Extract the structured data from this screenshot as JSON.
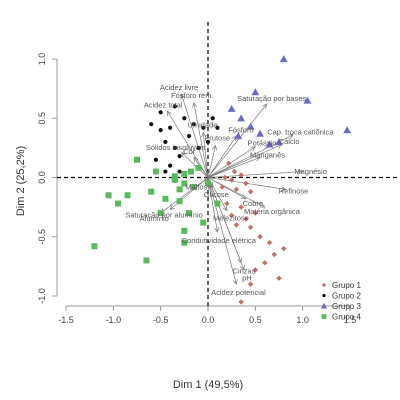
{
  "chart_data": {
    "type": "scatter",
    "xlabel": "Dim 1 (49,5%)",
    "ylabel": "Dim 2 (25,2%)",
    "xlim": [
      -1.5,
      1.5
    ],
    "ylim": [
      -1.0,
      1.0
    ],
    "x_ticks": [
      "-1.5",
      "-1.0",
      "-0.5",
      "0.0",
      "0.5",
      "1.0",
      "1.5"
    ],
    "y_ticks": [
      "-1.0",
      "-0.5",
      "0.0",
      "0.5",
      "1.0"
    ],
    "x_tick_values": [
      -1.5,
      -1.0,
      -0.5,
      0.0,
      0.5,
      1.0,
      1.5
    ],
    "y_tick_values": [
      -1.0,
      -0.5,
      0.0,
      0.5,
      1.0
    ],
    "legend_position": "bottom-right",
    "grid": false,
    "variables": [
      {
        "label": "Acidez livre",
        "x": -0.28,
        "y": 0.7
      },
      {
        "label": "Fósforo rem.",
        "x": -0.15,
        "y": 0.63
      },
      {
        "label": "Acidez total",
        "x": -0.43,
        "y": 0.56
      },
      {
        "label": "Saturação por bases",
        "x": 0.62,
        "y": 0.62
      },
      {
        "label": "Umidade",
        "x": -0.05,
        "y": 0.38
      },
      {
        "label": "Fósforo",
        "x": 0.3,
        "y": 0.35
      },
      {
        "label": "Cap. troca catiônica",
        "x": 0.9,
        "y": 0.36
      },
      {
        "label": "Frutose",
        "x": 0.08,
        "y": 0.27
      },
      {
        "label": "Potássio",
        "x": 0.5,
        "y": 0.26
      },
      {
        "label": "Cálcio",
        "x": 0.78,
        "y": 0.28
      },
      {
        "label": "Sólidos insolúveis",
        "x": -0.28,
        "y": 0.21
      },
      {
        "label": "Cor",
        "x": -0.15,
        "y": 0.17
      },
      {
        "label": "Manganês",
        "x": 0.55,
        "y": 0.17
      },
      {
        "label": "Magnésio",
        "x": 1.0,
        "y": 0.05
      },
      {
        "label": "Maltose",
        "x": -0.04,
        "y": -0.03
      },
      {
        "label": "Glicose",
        "x": 0.05,
        "y": -0.08
      },
      {
        "label": "Refinose",
        "x": 0.82,
        "y": -0.1
      },
      {
        "label": "Cobre",
        "x": 0.4,
        "y": -0.18
      },
      {
        "label": "Matéria orgânica",
        "x": 0.6,
        "y": -0.25
      },
      {
        "label": "Saturação por alumínio",
        "x": -0.4,
        "y": -0.27
      },
      {
        "label": "Alumínio",
        "x": -0.5,
        "y": -0.3
      },
      {
        "label": "Melezitose",
        "x": 0.2,
        "y": -0.28
      },
      {
        "label": "Condutividade elétrica",
        "x": 0.1,
        "y": -0.46
      },
      {
        "label": "Cinzas",
        "x": 0.35,
        "y": -0.72
      },
      {
        "label": "pH",
        "x": 0.38,
        "y": -0.78
      },
      {
        "label": "Acidez potencial",
        "x": 0.3,
        "y": -0.9
      }
    ],
    "series": [
      {
        "name": "Grupo 1",
        "color": "#c0706b",
        "marker": "diamond",
        "points": [
          [
            0.22,
            0.12
          ],
          [
            0.28,
            0.05
          ],
          [
            0.35,
            0.02
          ],
          [
            0.25,
            -0.02
          ],
          [
            0.4,
            -0.05
          ],
          [
            0.3,
            -0.1
          ],
          [
            0.45,
            -0.12
          ],
          [
            0.2,
            -0.22
          ],
          [
            0.35,
            -0.25
          ],
          [
            0.5,
            -0.3
          ],
          [
            0.25,
            -0.32
          ],
          [
            0.4,
            -0.35
          ],
          [
            0.3,
            -0.4
          ],
          [
            0.45,
            -0.42
          ],
          [
            0.55,
            -0.5
          ],
          [
            0.65,
            -0.55
          ],
          [
            0.7,
            -0.65
          ],
          [
            0.8,
            -0.6
          ],
          [
            0.6,
            -0.72
          ],
          [
            0.75,
            -0.85
          ],
          [
            0.5,
            -0.78
          ],
          [
            0.45,
            -0.9
          ],
          [
            0.35,
            -1.05
          ],
          [
            0.15,
            -0.08
          ],
          [
            0.18,
            0.0
          ]
        ]
      },
      {
        "name": "Grupo 2",
        "color": "#111111",
        "marker": "circle",
        "points": [
          [
            -0.6,
            0.45
          ],
          [
            -0.5,
            0.4
          ],
          [
            -0.4,
            0.42
          ],
          [
            -0.5,
            0.55
          ],
          [
            -0.35,
            0.6
          ],
          [
            -0.25,
            0.5
          ],
          [
            -0.15,
            0.45
          ],
          [
            -0.05,
            0.42
          ],
          [
            0.05,
            0.5
          ],
          [
            0.1,
            0.42
          ],
          [
            -0.45,
            0.3
          ],
          [
            -0.35,
            0.25
          ],
          [
            -0.2,
            0.35
          ],
          [
            -0.1,
            0.25
          ],
          [
            0.0,
            0.3
          ],
          [
            -0.55,
            0.15
          ],
          [
            -0.4,
            0.1
          ],
          [
            -0.3,
            0.05
          ],
          [
            -0.3,
            0.18
          ],
          [
            -0.45,
            0.05
          ]
        ]
      },
      {
        "name": "Grupo 3",
        "color": "#6a6ac8",
        "marker": "triangle",
        "points": [
          [
            0.25,
            0.58
          ],
          [
            0.35,
            0.5
          ],
          [
            0.45,
            0.43
          ],
          [
            0.5,
            0.72
          ],
          [
            0.8,
            1.0
          ],
          [
            1.05,
            0.65
          ],
          [
            1.47,
            0.4
          ],
          [
            0.75,
            0.3
          ],
          [
            0.55,
            0.37
          ],
          [
            0.65,
            0.28
          ],
          [
            0.32,
            0.35
          ]
        ]
      },
      {
        "name": "Grupo 4",
        "color": "#5cb85c",
        "marker": "square",
        "points": [
          [
            -1.05,
            -0.15
          ],
          [
            -0.85,
            -0.15
          ],
          [
            -0.95,
            -0.22
          ],
          [
            -0.75,
            0.15
          ],
          [
            -0.55,
            0.05
          ],
          [
            -0.35,
            -0.02
          ],
          [
            -0.25,
            -0.05
          ],
          [
            -0.3,
            -0.1
          ],
          [
            -0.15,
            -0.08
          ],
          [
            -0.1,
            0.08
          ],
          [
            0.0,
            -0.05
          ],
          [
            -0.18,
            0.05
          ],
          [
            -0.25,
            0.03
          ],
          [
            -0.35,
            0.01
          ],
          [
            -0.45,
            -0.18
          ],
          [
            -0.3,
            -0.2
          ],
          [
            -0.2,
            -0.3
          ],
          [
            -0.25,
            -0.45
          ],
          [
            -0.25,
            -0.55
          ],
          [
            -0.65,
            -0.7
          ],
          [
            -1.2,
            -0.58
          ],
          [
            -0.5,
            -0.3
          ],
          [
            -0.05,
            -0.38
          ],
          [
            0.1,
            -0.22
          ],
          [
            -0.6,
            -0.12
          ]
        ]
      }
    ]
  }
}
